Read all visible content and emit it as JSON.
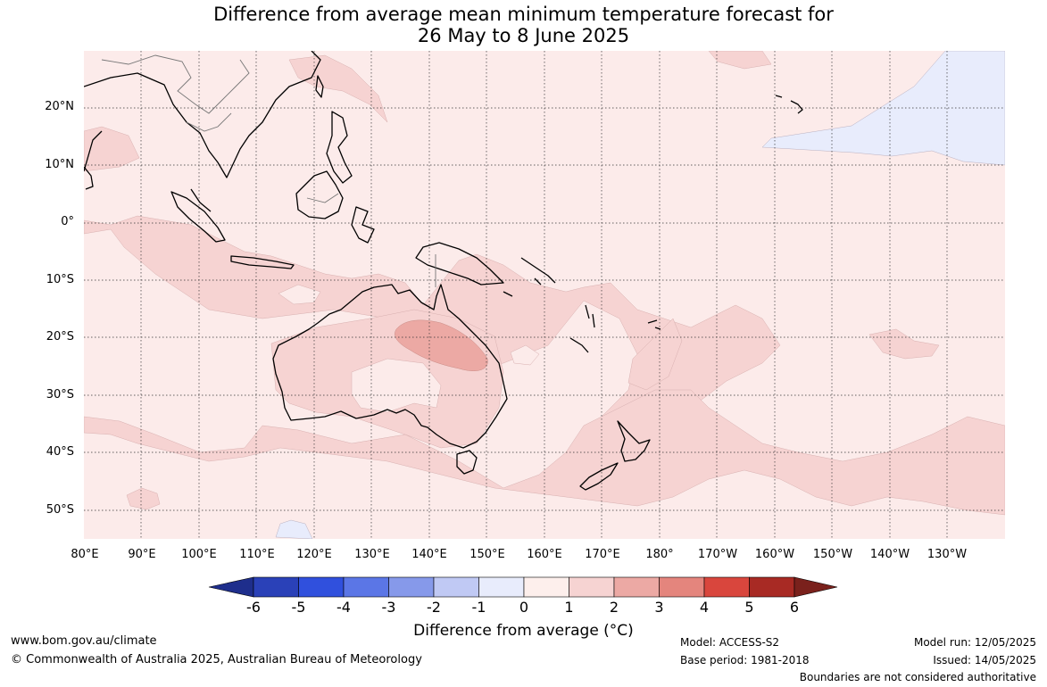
{
  "title_line1": "Difference from average mean minimum temperature forecast for",
  "title_line2": "26 May to 8 June 2025",
  "lat_labels": [
    "20°N",
    "10°N",
    "0°",
    "10°S",
    "20°S",
    "30°S",
    "40°S",
    "50°S"
  ],
  "lon_labels": [
    "80°E",
    "90°E",
    "100°E",
    "110°E",
    "120°E",
    "130°E",
    "140°E",
    "150°E",
    "160°E",
    "170°E",
    "180°",
    "170°W",
    "160°W",
    "150°W",
    "140°W",
    "130°W"
  ],
  "colorbar": {
    "title": "Difference from average (°C)",
    "ticks": [
      "-6",
      "-5",
      "-4",
      "-3",
      "-2",
      "-1",
      "0",
      "1",
      "2",
      "3",
      "4",
      "5",
      "6"
    ],
    "colors": [
      "#1e2e8c",
      "#2a41b8",
      "#3050dd",
      "#5b76e6",
      "#8699ea",
      "#c0c9f4",
      "#e8ecfc",
      "#fdefec",
      "#f6d3d2",
      "#eca9a4",
      "#e4857d",
      "#d9463d",
      "#a82a24",
      "#7a211c"
    ]
  },
  "legend_colors": {
    "ocean_base": "#fcebea",
    "band_warm": "#f6d3d2",
    "hotspot": "#eca9a4",
    "cool": "#e8ecfc"
  },
  "footer": {
    "website": "www.bom.gov.au/climate",
    "copyright": "© Commonwealth of Australia 2025, Australian Bureau of Meteorology",
    "model": "Model: ACCESS-S2",
    "base_period": "Base period: 1981-2018",
    "model_run": "Model run: 12/05/2025",
    "issued": "Issued: 14/05/2025",
    "disclaimer": "Boundaries are not considered authoritative"
  }
}
